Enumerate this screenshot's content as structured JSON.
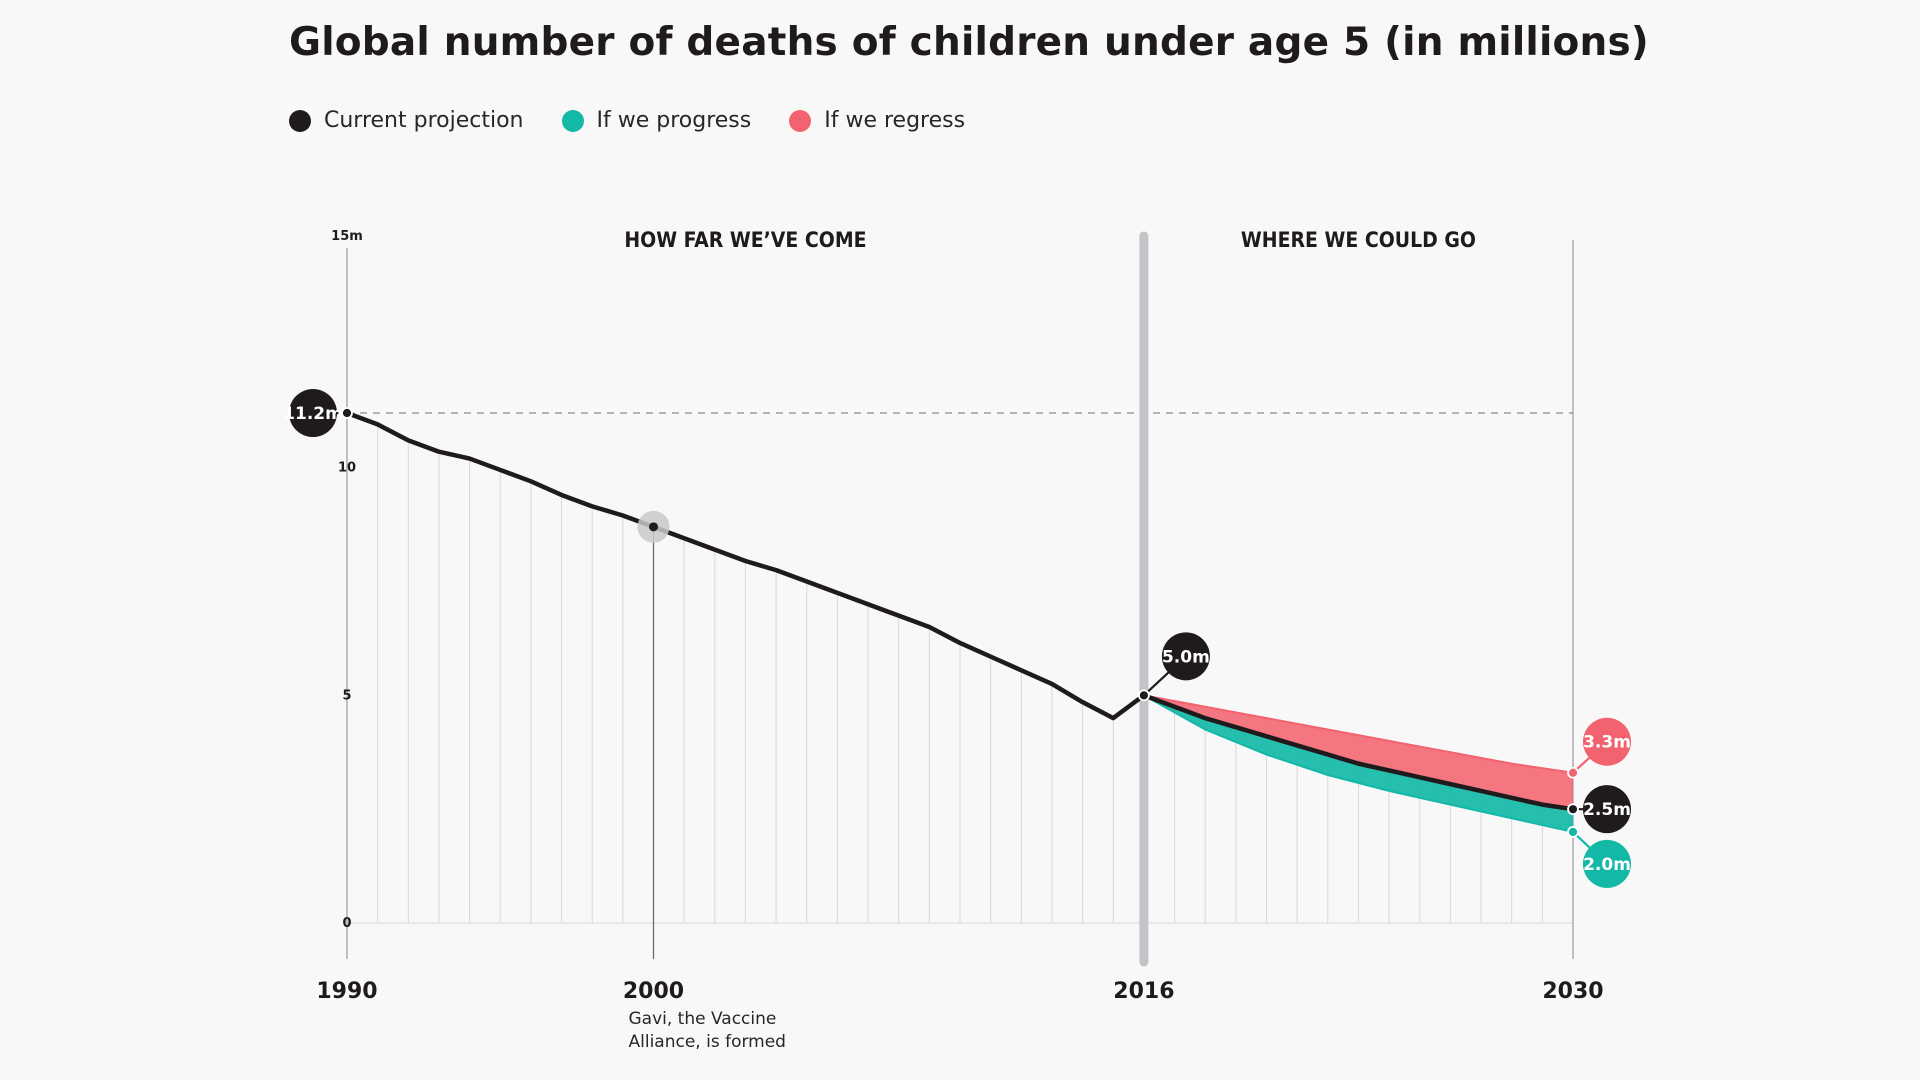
{
  "colors": {
    "current": "#1f1b1c",
    "progress": "#14b8a6",
    "regress": "#f2636f",
    "background": "#f8f8f9",
    "grid": "#d8d8dc",
    "divider": "#c4c4c8"
  },
  "chart_data": {
    "type": "line",
    "title": "Global number of deaths of children under age 5 (in millions)",
    "legend": {
      "placement": "top-left",
      "items": [
        {
          "key": "current",
          "label": "Current projection"
        },
        {
          "key": "progress",
          "label": "If we progress"
        },
        {
          "key": "regress",
          "label": "If we regress"
        }
      ]
    },
    "xlim": [
      1990,
      2030
    ],
    "ylim": [
      0,
      15
    ],
    "y_ticks": [
      {
        "value": 0,
        "label": "0"
      },
      {
        "value": 5,
        "label": "5"
      },
      {
        "value": 10,
        "label": "10"
      },
      {
        "value": 15,
        "label": "15m"
      }
    ],
    "x_ticks": [
      {
        "value": 1990,
        "label": "1990"
      },
      {
        "value": 2000,
        "label": "2000"
      },
      {
        "value": 2016,
        "label": "2016"
      },
      {
        "value": 2030,
        "label": "2030"
      }
    ],
    "sections": [
      {
        "label": "HOW FAR WE’VE COME",
        "center_x": 2003
      },
      {
        "label": "WHERE WE COULD GO",
        "center_x": 2023
      }
    ],
    "divider_x": 2016,
    "reference_line": {
      "y": 11.2
    },
    "series": [
      {
        "key": "current",
        "name": "Current projection",
        "x": [
          1990,
          1991,
          1992,
          1993,
          1994,
          1995,
          1996,
          1997,
          1998,
          1999,
          2000,
          2001,
          2002,
          2003,
          2004,
          2005,
          2006,
          2007,
          2008,
          2009,
          2010,
          2011,
          2012,
          2013,
          2014,
          2015,
          2016,
          2017,
          2018,
          2019,
          2020,
          2021,
          2022,
          2023,
          2024,
          2025,
          2026,
          2027,
          2028,
          2029,
          2030
        ],
        "y": [
          11.2,
          10.95,
          10.6,
          10.35,
          10.2,
          9.95,
          9.7,
          9.4,
          9.15,
          8.95,
          8.7,
          8.45,
          8.2,
          7.95,
          7.75,
          7.5,
          7.25,
          7.0,
          6.75,
          6.5,
          6.15,
          5.85,
          5.55,
          5.25,
          4.85,
          4.5,
          5.0,
          4.75,
          4.5,
          4.3,
          4.1,
          3.9,
          3.7,
          3.5,
          3.35,
          3.2,
          3.05,
          2.9,
          2.75,
          2.6,
          2.5
        ]
      },
      {
        "key": "progress",
        "name": "If we progress",
        "x": [
          2016,
          2018,
          2020,
          2022,
          2024,
          2026,
          2028,
          2030
        ],
        "y": [
          5.0,
          4.25,
          3.7,
          3.25,
          2.9,
          2.6,
          2.3,
          2.0
        ]
      },
      {
        "key": "regress",
        "name": "If we regress",
        "x": [
          2016,
          2018,
          2020,
          2022,
          2024,
          2026,
          2028,
          2030
        ],
        "y": [
          5.0,
          4.75,
          4.5,
          4.25,
          4.0,
          3.75,
          3.5,
          3.3
        ]
      }
    ],
    "callouts": [
      {
        "key": "current",
        "x": 1990,
        "y": 11.2,
        "label": "11.2m"
      },
      {
        "key": "current",
        "x": 2016,
        "y": 5.0,
        "label": "5.0m"
      },
      {
        "key": "regress",
        "x": 2030,
        "y": 3.3,
        "label": "3.3m"
      },
      {
        "key": "current",
        "x": 2030,
        "y": 2.5,
        "label": "2.5m"
      },
      {
        "key": "progress",
        "x": 2030,
        "y": 2.0,
        "label": "2.0m"
      }
    ],
    "annotations": [
      {
        "x": 2000,
        "y": 8.7,
        "lines": [
          "Gavi, the Vaccine",
          "Alliance, is formed"
        ]
      }
    ]
  }
}
